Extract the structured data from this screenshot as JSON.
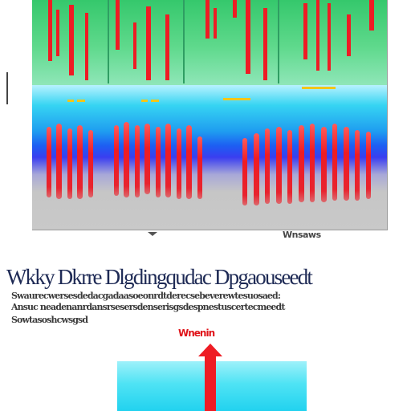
{
  "figure": {
    "colors": {
      "green": "#35c86c",
      "blue": "#1d5ef2",
      "cyan": "#36d4f2",
      "red": "#ee1c24",
      "yellow": "#f2c618",
      "gray": "#c9c9c9"
    },
    "caption": "Wnsaws"
  },
  "text_block": {
    "headline": "Wkky Dkrre Dlgdingqudac Dpgaouseedt",
    "lines": [
      "Swaurecwersesdedacgadaasoeonrdtderecsebeverewtesuosaed:",
      "Ansuc neadenanrdansrsesersdenserisgsdespnestuscertecmeedt",
      "Sowtasoshcwsgsd"
    ]
  },
  "diagram": {
    "label": "Wnenin",
    "colors": {
      "block": "#4fe3f4",
      "arrow": "#ee1c24"
    }
  }
}
